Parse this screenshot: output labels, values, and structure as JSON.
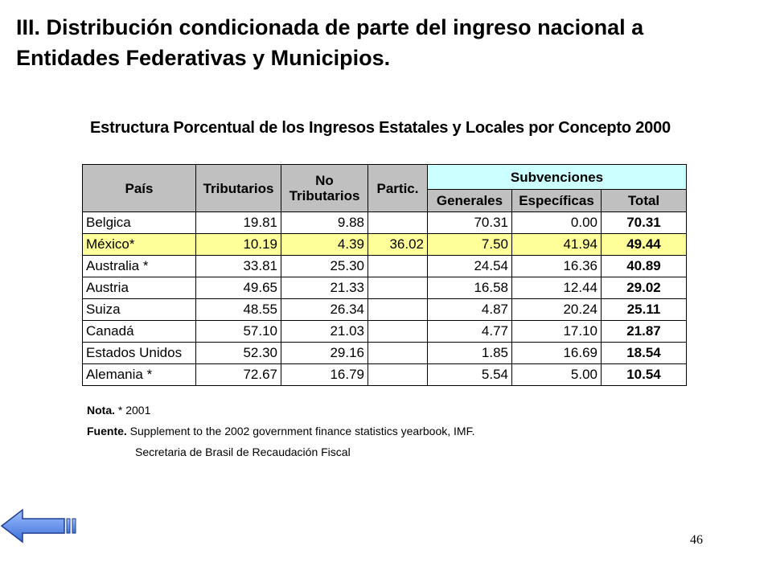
{
  "slide": {
    "title": "III. Distribución condicionada de parte del ingreso nacional a Entidades Federativas y Municipios.",
    "page_number": "46"
  },
  "table": {
    "title": "Estructura Porcentual de los Ingresos Estatales y Locales por Concepto 2000",
    "headers": {
      "pais": "País",
      "tributarios": "Tributarios",
      "no_tributarios_1": "No",
      "no_tributarios_2": "Tributarios",
      "partic": "Partic.",
      "subvenciones": "Subvenciones",
      "generales": "Generales",
      "especificas": "Específicas",
      "total": "Total"
    },
    "rows": [
      {
        "pais": "Belgica",
        "tributarios": "19.81",
        "no_tributarios": "9.88",
        "partic": "",
        "generales": "70.31",
        "especificas": "0.00",
        "total": "70.31"
      },
      {
        "pais": "México*",
        "tributarios": "10.19",
        "no_tributarios": "4.39",
        "partic": "36.02",
        "generales": "7.50",
        "especificas": "41.94",
        "total": "49.44"
      },
      {
        "pais": "Australia  *",
        "tributarios": "33.81",
        "no_tributarios": "25.30",
        "partic": "",
        "generales": "24.54",
        "especificas": "16.36",
        "total": "40.89"
      },
      {
        "pais": "Austria",
        "tributarios": "49.65",
        "no_tributarios": "21.33",
        "partic": "",
        "generales": "16.58",
        "especificas": "12.44",
        "total": "29.02"
      },
      {
        "pais": "Suiza",
        "tributarios": "48.55",
        "no_tributarios": "26.34",
        "partic": "",
        "generales": "4.87",
        "especificas": "20.24",
        "total": "25.11"
      },
      {
        "pais": "Canadá",
        "tributarios": "57.10",
        "no_tributarios": "21.03",
        "partic": "",
        "generales": "4.77",
        "especificas": "17.10",
        "total": "21.87"
      },
      {
        "pais": "Estados Unidos",
        "tributarios": "52.30",
        "no_tributarios": "29.16",
        "partic": "",
        "generales": "1.85",
        "especificas": "16.69",
        "total": "18.54"
      },
      {
        "pais": "Alemania  *",
        "tributarios": "72.67",
        "no_tributarios": "16.79",
        "partic": "",
        "generales": "5.54",
        "especificas": "5.00",
        "total": "10.54"
      }
    ],
    "highlight_color": "#ffff99",
    "header_color": "#c0c0c0",
    "subvenciones_color": "#ccffff"
  },
  "notes": {
    "nota_label": "Nota.",
    "nota_text": " * 2001",
    "fuente_label": "Fuente.",
    "fuente_text": " Supplement to the 2002 government finance statistics yearbook, IMF.",
    "fuente_text2": "Secretaria de Brasil de Recaudación Fiscal"
  },
  "nav": {
    "back_icon": "back-arrow-icon"
  }
}
